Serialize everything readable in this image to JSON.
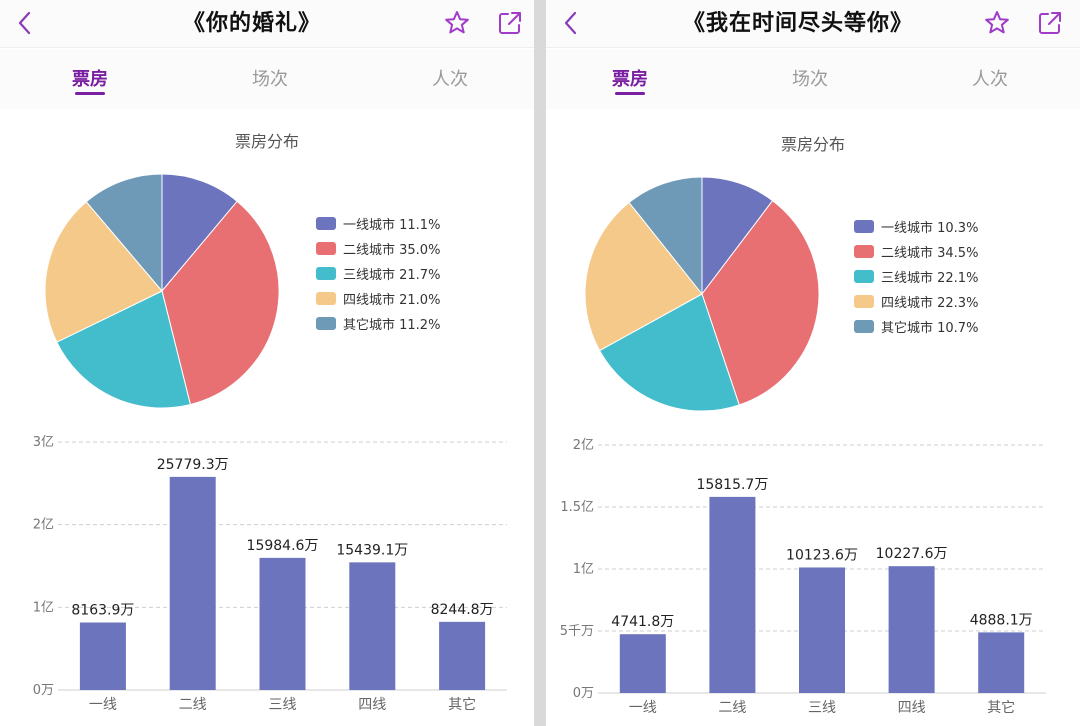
{
  "panels": [
    {
      "title": "《你的婚礼》",
      "tabs": [
        "票房",
        "场次",
        "人次"
      ],
      "active_tab": 0,
      "section_title": "票房分布"
    },
    {
      "title": "《我在时间尽头等你》",
      "tabs": [
        "票房",
        "场次",
        "人次"
      ],
      "active_tab": 0,
      "section_title": "票房分布"
    }
  ],
  "colors": [
    "#6c74bd",
    "#e86f72",
    "#43bccb",
    "#f5c98a",
    "#6e9ab8"
  ],
  "bar_color": "#6c74bd",
  "icons": [
    "back-arrow-icon",
    "star-icon",
    "share-icon"
  ],
  "chart_data": [
    {
      "type": "pie",
      "categories": [
        "一线城市",
        "二线城市",
        "三线城市",
        "四线城市",
        "其它城市"
      ],
      "values": [
        11.1,
        35.0,
        21.7,
        21.0,
        11.2
      ],
      "legend_labels": [
        "一线城市 11.1%",
        "二线城市 35.0%",
        "三线城市 21.7%",
        "四线城市 21.0%",
        "其它城市 11.2%"
      ],
      "legend": "right"
    },
    {
      "type": "bar",
      "categories": [
        "一线",
        "二线",
        "三线",
        "四线",
        "其它"
      ],
      "values": [
        8163.9,
        25779.3,
        15984.6,
        15439.1,
        8244.8
      ],
      "data_labels": [
        "8163.9万",
        "25779.3万",
        "15984.6万",
        "15439.1万",
        "8244.8万"
      ],
      "yticks": [
        0,
        10000,
        20000,
        30000
      ],
      "ytick_labels": [
        "0万",
        "1亿",
        "2亿",
        "3亿"
      ],
      "ylim": [
        0,
        30000
      ],
      "grid": true
    },
    {
      "type": "pie",
      "categories": [
        "一线城市",
        "二线城市",
        "三线城市",
        "四线城市",
        "其它城市"
      ],
      "values": [
        10.3,
        34.5,
        22.1,
        22.3,
        10.7
      ],
      "legend_labels": [
        "一线城市 10.3%",
        "二线城市 34.5%",
        "三线城市 22.1%",
        "四线城市 22.3%",
        "其它城市 10.7%"
      ],
      "legend": "right"
    },
    {
      "type": "bar",
      "categories": [
        "一线",
        "二线",
        "三线",
        "四线",
        "其它"
      ],
      "values": [
        4741.8,
        15815.7,
        10123.6,
        10227.6,
        4888.1
      ],
      "data_labels": [
        "4741.8万",
        "15815.7万",
        "10123.6万",
        "10227.6万",
        "4888.1万"
      ],
      "yticks": [
        0,
        5000,
        10000,
        15000,
        20000
      ],
      "ytick_labels": [
        "0万",
        "5千万",
        "1亿",
        "1.5亿",
        "2亿"
      ],
      "ylim": [
        0,
        20000
      ],
      "grid": true
    }
  ]
}
